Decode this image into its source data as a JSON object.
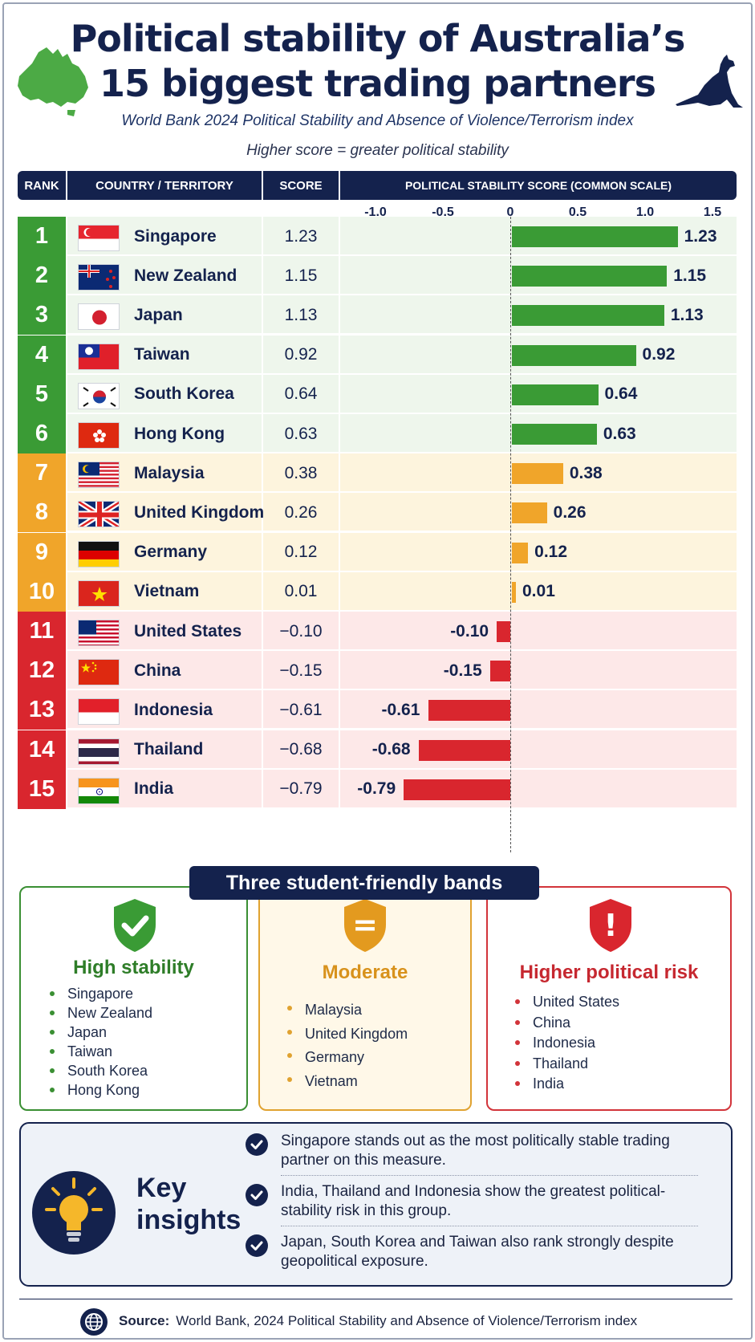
{
  "header": {
    "title_line1": "Political stability of Australia’s",
    "title_line2": "15 biggest trading partners",
    "subtitle": "World Bank 2024 Political Stability and Absence of Violence/Terrorism index",
    "note": "Higher score = greater political stability"
  },
  "table": {
    "col_rank": "RANK",
    "col_country": "COUNTRY / TERRITORY",
    "col_score": "SCORE",
    "col_plot": "POLITICAL STABILITY SCORE (COMMON SCALE)"
  },
  "chart_data": {
    "type": "bar",
    "orientation": "horizontal",
    "xlim": [
      -1.0,
      1.5
    ],
    "ticks": [
      "-1.0",
      "-0.5",
      "0",
      "0.5",
      "1.0",
      "1.5"
    ],
    "tick_values": [
      -1.0,
      -0.5,
      0,
      0.5,
      1.0,
      1.5
    ],
    "categories": [
      "Singapore",
      "New Zealand",
      "Japan",
      "Taiwan",
      "South Korea",
      "Hong Kong",
      "Malaysia",
      "United Kingdom",
      "Germany",
      "Vietnam",
      "United States",
      "China",
      "Indonesia",
      "Thailand",
      "India"
    ],
    "ranks": [
      "1",
      "2",
      "3",
      "4",
      "5",
      "6",
      "7",
      "8",
      "9",
      "10",
      "11",
      "12",
      "13",
      "14",
      "15"
    ],
    "values": [
      1.23,
      1.15,
      1.13,
      0.92,
      0.64,
      0.63,
      0.38,
      0.26,
      0.12,
      0.01,
      -0.1,
      -0.15,
      -0.61,
      -0.68,
      -0.79
    ],
    "labels": [
      "1.23",
      "1.15",
      "1.13",
      "0.92",
      "0.64",
      "0.63",
      "0.38",
      "0.26",
      "0.12",
      "0.01",
      "-0.10",
      "-0.15",
      "-0.61",
      "-0.68",
      "-0.79"
    ],
    "score_labels": [
      "1.23",
      "1.15",
      "1.13",
      "0.92",
      "0.64",
      "0.63",
      "0.38",
      "0.26",
      "0.12",
      "0.01",
      "−0.10",
      "−0.15",
      "−0.61",
      "−0.68",
      "−0.79"
    ],
    "bands": [
      "high",
      "high",
      "high",
      "high",
      "high",
      "high",
      "moderate",
      "moderate",
      "moderate",
      "moderate",
      "risk",
      "risk",
      "risk",
      "risk",
      "risk"
    ],
    "flags": [
      "singapore-flag",
      "new-zealand-flag",
      "japan-flag",
      "taiwan-flag",
      "south-korea-flag",
      "hong-kong-flag",
      "malaysia-flag",
      "united-kingdom-flag",
      "germany-flag",
      "vietnam-flag",
      "united-states-flag",
      "china-flag",
      "indonesia-flag",
      "thailand-flag",
      "india-flag"
    ],
    "colors": {
      "high": "#3a9b35",
      "moderate": "#f0a52a",
      "risk": "#d9262e"
    }
  },
  "bands_section": {
    "title": "Three student-friendly bands",
    "high": {
      "name": "High stability",
      "items": [
        "Singapore",
        "New Zealand",
        "Japan",
        "Taiwan",
        "South Korea",
        "Hong Kong"
      ]
    },
    "moderate": {
      "name": "Moderate",
      "icon_text": "=",
      "items": [
        "Malaysia",
        "United Kingdom",
        "Germany",
        "Vietnam"
      ]
    },
    "risk": {
      "name": "Higher political risk",
      "icon_text": "!",
      "items": [
        "United States",
        "China",
        "Indonesia",
        "Thailand",
        "India"
      ]
    }
  },
  "insights": {
    "title_line1": "Key",
    "title_line2": "insights",
    "items": [
      "Singapore stands out as the most politically stable trading partner on this measure.",
      "India, Thailand and Indonesia show the greatest political-stability risk in this group.",
      "Japan, South Korea and Taiwan also rank strongly despite geopolitical exposure."
    ]
  },
  "source": {
    "label": "Source:",
    "text": "World Bank, 2024 Political Stability and Absence of Violence/Terrorism index"
  }
}
